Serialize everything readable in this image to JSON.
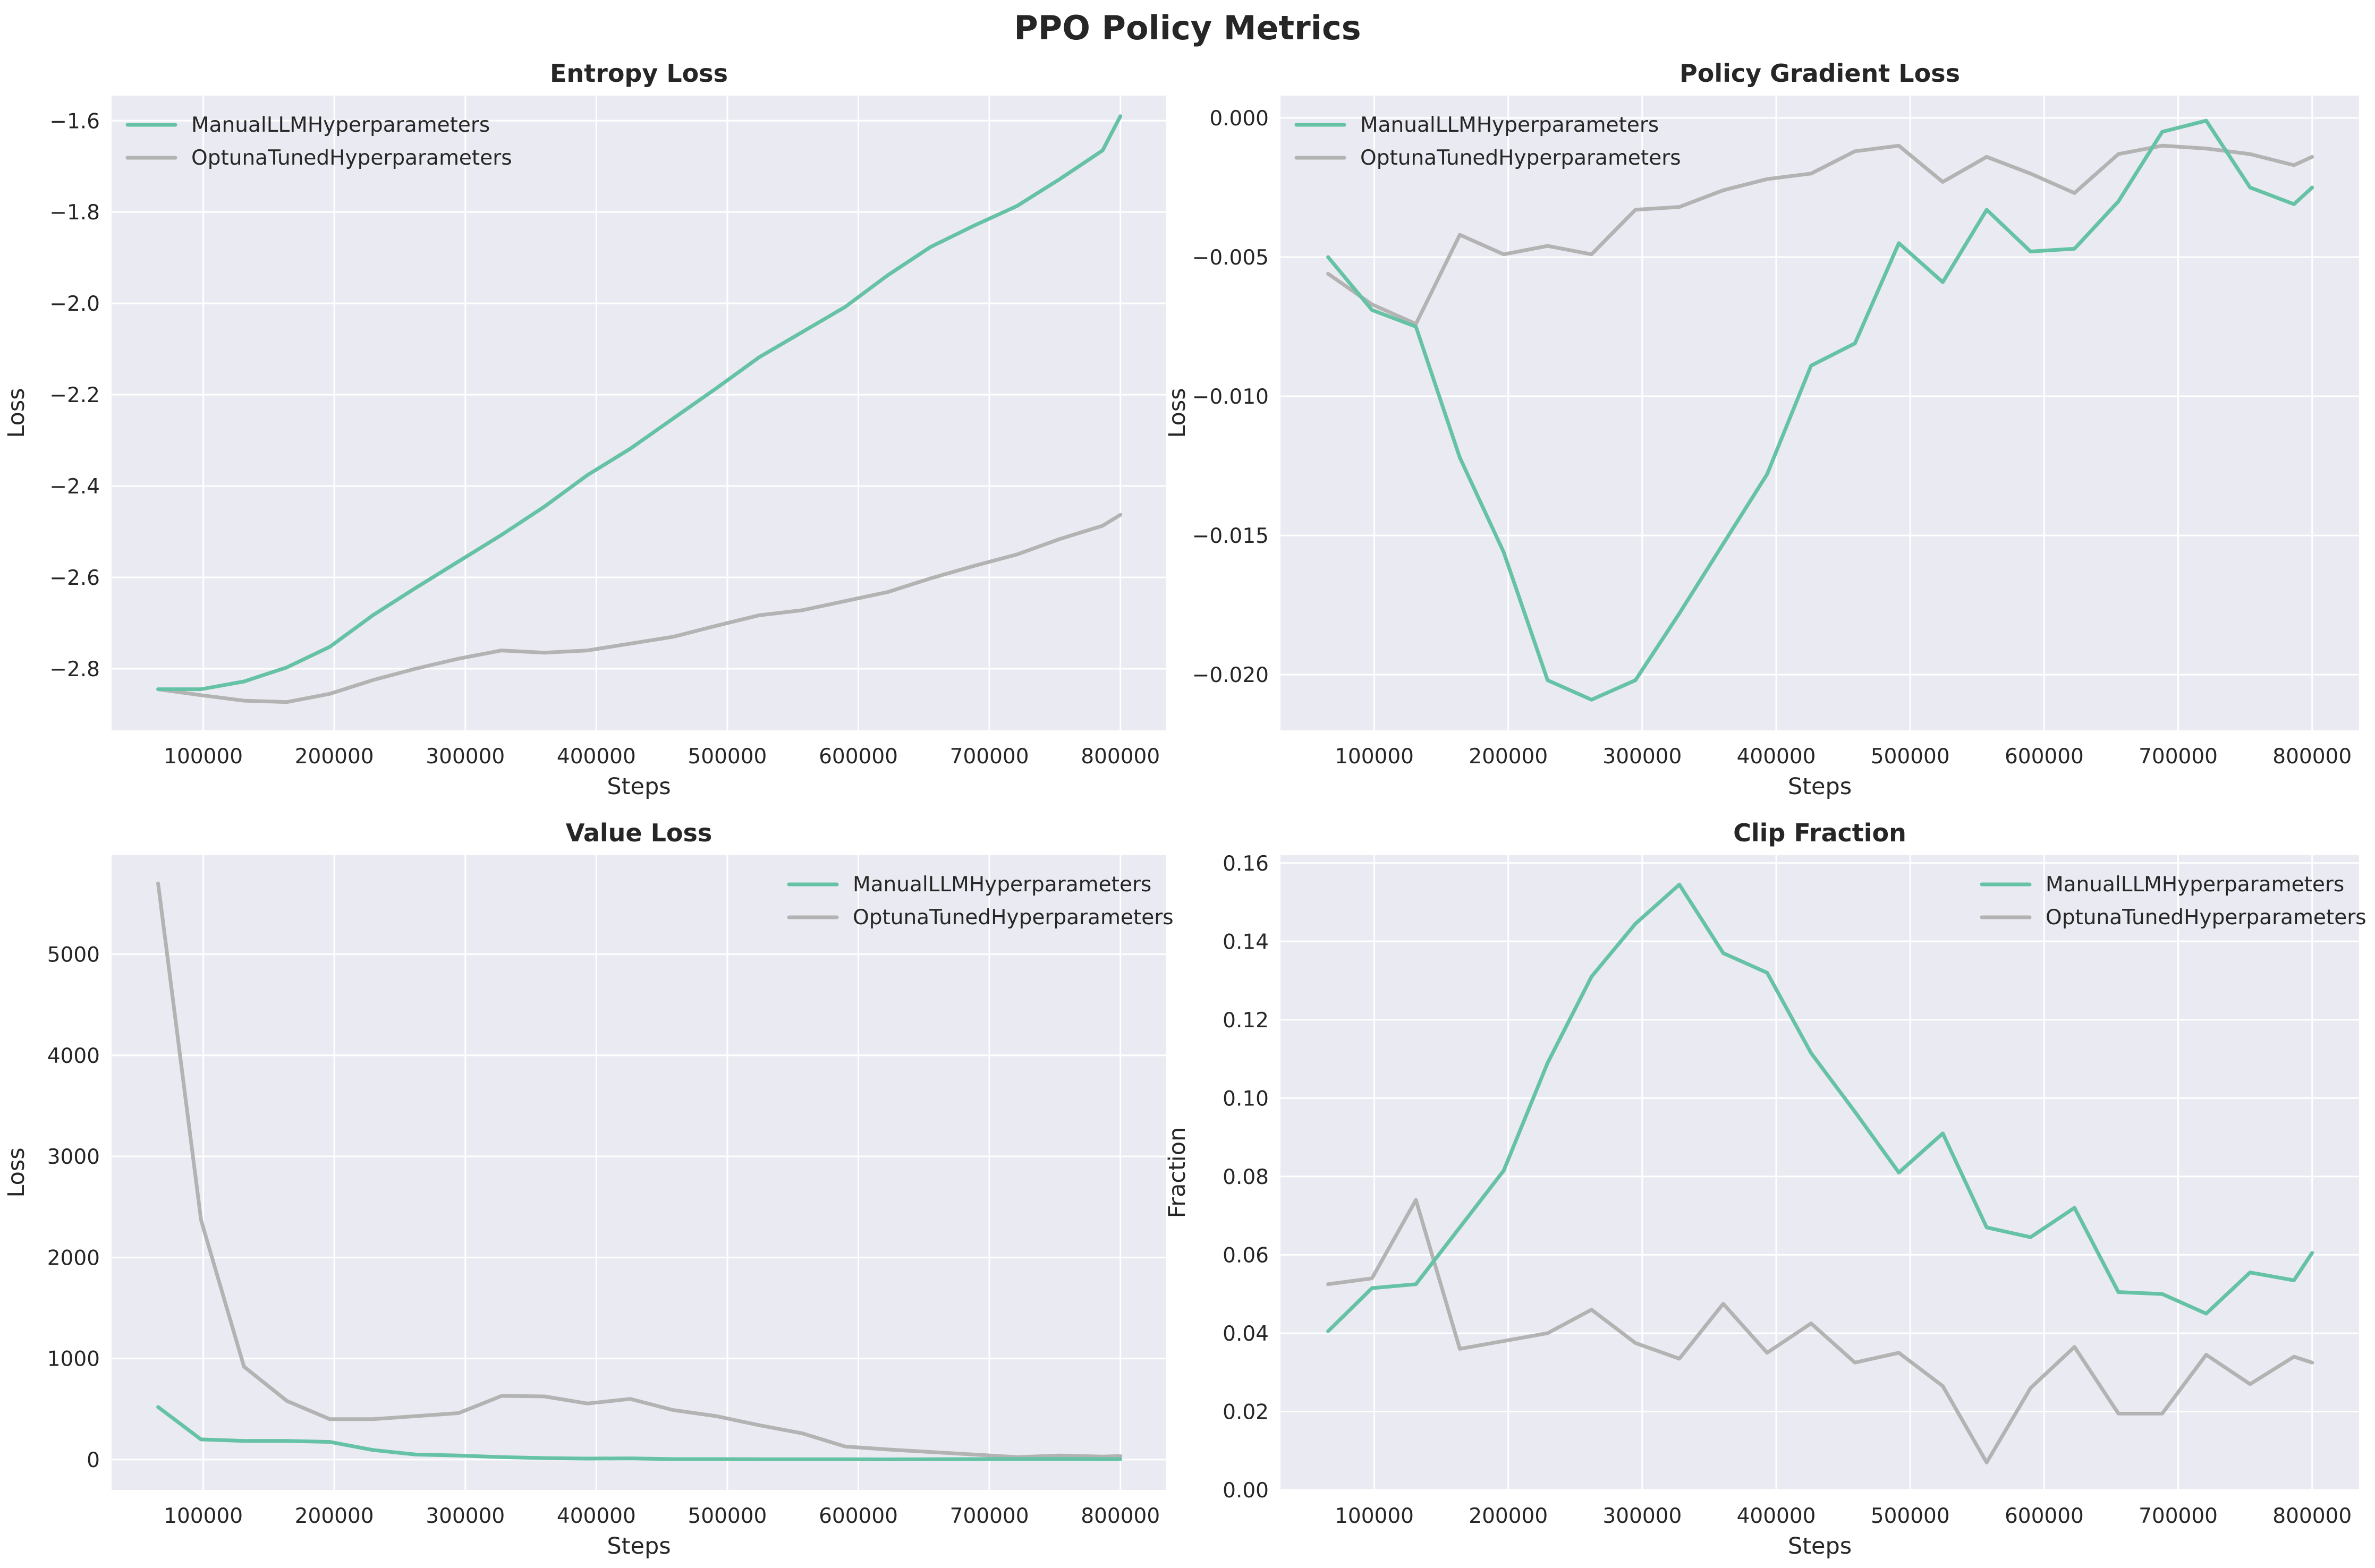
{
  "figure": {
    "suptitle": "PPO Policy Metrics"
  },
  "colors": {
    "manual": "#66c2a5",
    "optuna": "#b3b3b3",
    "background": "#eaeaf2",
    "grid": "#ffffff"
  },
  "chart_data": [
    {
      "type": "line",
      "title": "Entropy Loss",
      "xlabel": "Steps",
      "ylabel": "Loss",
      "xlim": [
        30000,
        835000
      ],
      "ylim": [
        -2.935,
        -1.545
      ],
      "xticks": [
        100000,
        200000,
        300000,
        400000,
        500000,
        600000,
        700000,
        800000
      ],
      "yticks": [
        -2.8,
        -2.6,
        -2.4,
        -2.2,
        -2.0,
        -1.8,
        -1.6
      ],
      "ytick_labels": [
        "−2.8",
        "−2.6",
        "−2.4",
        "−2.2",
        "−2.0",
        "−1.8",
        "−1.6"
      ],
      "legend": "upper left",
      "x": [
        65536,
        98304,
        131072,
        163840,
        196608,
        229376,
        262144,
        294912,
        327680,
        360448,
        393216,
        425984,
        458752,
        491520,
        524288,
        557056,
        589824,
        622592,
        655360,
        688128,
        720896,
        753664,
        786432,
        800000
      ],
      "series": [
        {
          "name": "ManualLLMHyperparameters",
          "color": "#66c2a5",
          "values": [
            -2.845,
            -2.845,
            -2.828,
            -2.797,
            -2.752,
            -2.683,
            -2.623,
            -2.565,
            -2.507,
            -2.445,
            -2.376,
            -2.318,
            -2.252,
            -2.186,
            -2.118,
            -2.063,
            -2.008,
            -1.938,
            -1.876,
            -1.83,
            -1.787,
            -1.728,
            -1.665,
            -1.59
          ]
        },
        {
          "name": "OptunaTunedHyperparameters",
          "color": "#b3b3b3",
          "values": [
            -2.845,
            -2.858,
            -2.87,
            -2.873,
            -2.855,
            -2.825,
            -2.8,
            -2.778,
            -2.76,
            -2.765,
            -2.76,
            -2.745,
            -2.73,
            -2.706,
            -2.683,
            -2.672,
            -2.652,
            -2.632,
            -2.602,
            -2.575,
            -2.55,
            -2.516,
            -2.487,
            -2.463
          ]
        }
      ]
    },
    {
      "type": "line",
      "title": "Policy Gradient Loss",
      "xlabel": "Steps",
      "ylabel": "Loss",
      "xlim": [
        30000,
        835000
      ],
      "ylim": [
        -0.022,
        0.0008
      ],
      "xticks": [
        100000,
        200000,
        300000,
        400000,
        500000,
        600000,
        700000,
        800000
      ],
      "yticks": [
        -0.02,
        -0.015,
        -0.01,
        -0.005,
        0.0
      ],
      "ytick_labels": [
        "−0.020",
        "−0.015",
        "−0.010",
        "−0.005",
        "0.000"
      ],
      "legend": "upper left",
      "x": [
        65536,
        98304,
        131072,
        163840,
        196608,
        229376,
        262144,
        294912,
        327680,
        360448,
        393216,
        425984,
        458752,
        491520,
        524288,
        557056,
        589824,
        622592,
        655360,
        688128,
        720896,
        753664,
        786432,
        800000
      ],
      "series": [
        {
          "name": "ManualLLMHyperparameters",
          "color": "#66c2a5",
          "values": [
            -0.005,
            -0.0069,
            -0.0075,
            -0.0122,
            -0.0156,
            -0.0202,
            -0.0209,
            -0.0202,
            -0.0178,
            -0.0153,
            -0.0128,
            -0.0089,
            -0.0081,
            -0.0045,
            -0.0059,
            -0.0033,
            -0.0048,
            -0.0047,
            -0.003,
            -0.0005,
            -0.0001,
            -0.0025,
            -0.0031,
            -0.0025
          ]
        },
        {
          "name": "OptunaTunedHyperparameters",
          "color": "#b3b3b3",
          "values": [
            -0.0056,
            -0.0067,
            -0.0074,
            -0.0042,
            -0.0049,
            -0.0046,
            -0.0049,
            -0.0033,
            -0.0032,
            -0.0026,
            -0.0022,
            -0.002,
            -0.0012,
            -0.001,
            -0.0023,
            -0.0014,
            -0.002,
            -0.0027,
            -0.0013,
            -0.001,
            -0.0011,
            -0.0013,
            -0.0017,
            -0.0014
          ]
        }
      ]
    },
    {
      "type": "line",
      "title": "Value Loss",
      "xlabel": "Steps",
      "ylabel": "Loss",
      "xlim": [
        30000,
        835000
      ],
      "ylim": [
        -300,
        5980
      ],
      "xticks": [
        100000,
        200000,
        300000,
        400000,
        500000,
        600000,
        700000,
        800000
      ],
      "yticks": [
        0,
        1000,
        2000,
        3000,
        4000,
        5000
      ],
      "ytick_labels": [
        "0",
        "1000",
        "2000",
        "3000",
        "4000",
        "5000"
      ],
      "legend": "upper right",
      "x": [
        65536,
        98304,
        131072,
        163840,
        196608,
        229376,
        262144,
        294912,
        327680,
        360448,
        393216,
        425984,
        458752,
        491520,
        524288,
        557056,
        589824,
        622592,
        655360,
        688128,
        720896,
        753664,
        786432,
        800000
      ],
      "series": [
        {
          "name": "ManualLLMHyperparameters",
          "color": "#66c2a5",
          "values": [
            520,
            200,
            185,
            185,
            175,
            95,
            50,
            40,
            25,
            15,
            10,
            12,
            5,
            5,
            3,
            4,
            3,
            2,
            4,
            5,
            6,
            6,
            5,
            5
          ]
        },
        {
          "name": "OptunaTunedHyperparameters",
          "color": "#b3b3b3",
          "values": [
            5700,
            2370,
            920,
            580,
            400,
            400,
            430,
            460,
            630,
            625,
            555,
            600,
            490,
            430,
            340,
            260,
            130,
            100,
            75,
            50,
            25,
            40,
            30,
            35
          ]
        }
      ]
    },
    {
      "type": "line",
      "title": "Clip Fraction",
      "xlabel": "Steps",
      "ylabel": "Fraction",
      "xlim": [
        30000,
        835000
      ],
      "ylim": [
        0.0,
        0.162
      ],
      "xticks": [
        100000,
        200000,
        300000,
        400000,
        500000,
        600000,
        700000,
        800000
      ],
      "yticks": [
        0.0,
        0.02,
        0.04,
        0.06,
        0.08,
        0.1,
        0.12,
        0.14,
        0.16
      ],
      "ytick_labels": [
        "0.00",
        "0.02",
        "0.04",
        "0.06",
        "0.08",
        "0.10",
        "0.12",
        "0.14",
        "0.16"
      ],
      "legend": "upper right",
      "x": [
        65536,
        98304,
        131072,
        163840,
        196608,
        229376,
        262144,
        294912,
        327680,
        360448,
        393216,
        425984,
        458752,
        491520,
        524288,
        557056,
        589824,
        622592,
        655360,
        688128,
        720896,
        753664,
        786432,
        800000
      ],
      "series": [
        {
          "name": "ManualLLMHyperparameters",
          "color": "#66c2a5",
          "values": [
            0.0405,
            0.0515,
            0.0525,
            0.067,
            0.0815,
            0.109,
            0.131,
            0.1445,
            0.1545,
            0.137,
            0.132,
            0.1115,
            0.0965,
            0.081,
            0.091,
            0.067,
            0.0645,
            0.072,
            0.0505,
            0.05,
            0.045,
            0.0555,
            0.0535,
            0.0605
          ]
        },
        {
          "name": "OptunaTunedHyperparameters",
          "color": "#b3b3b3",
          "values": [
            0.0525,
            0.054,
            0.074,
            0.036,
            0.038,
            0.04,
            0.046,
            0.0375,
            0.0335,
            0.0475,
            0.035,
            0.0425,
            0.0325,
            0.035,
            0.0265,
            0.007,
            0.026,
            0.0365,
            0.0195,
            0.0195,
            0.0345,
            0.027,
            0.034,
            0.0325
          ]
        }
      ]
    }
  ]
}
